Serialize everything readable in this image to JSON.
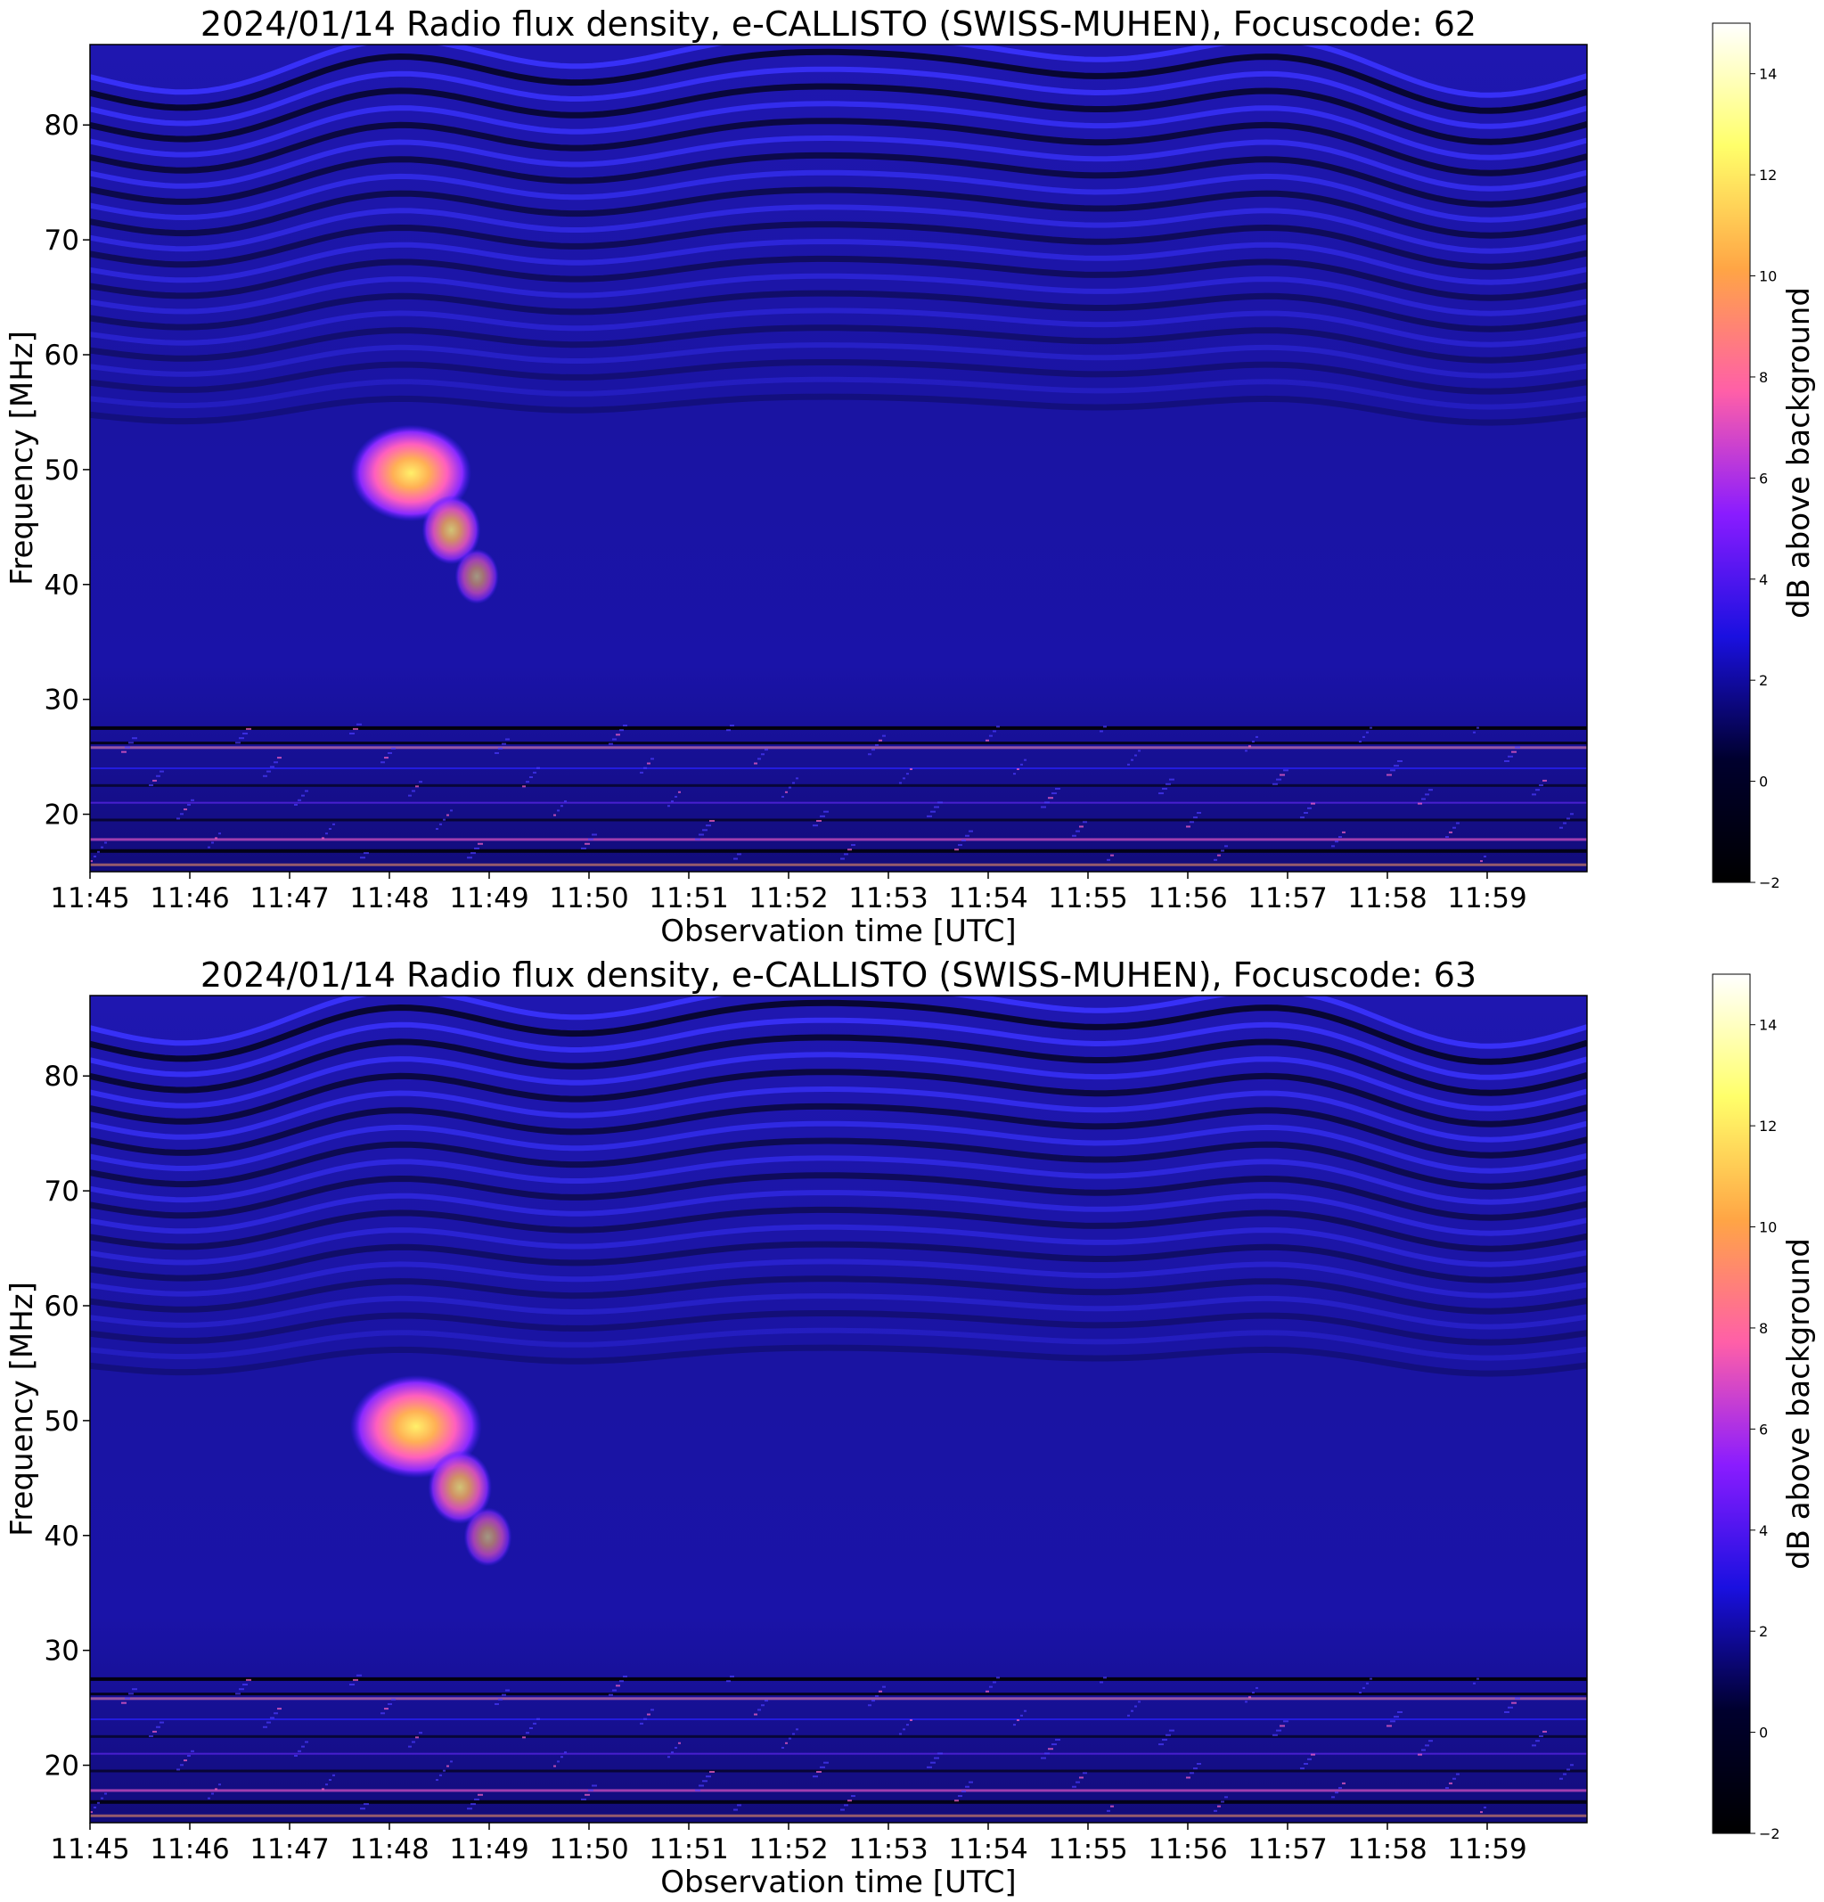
{
  "colors": {
    "colormap": [
      "#000000",
      "#00002e",
      "#1a10e0",
      "#8a1cff",
      "#ff5fa8",
      "#ffa545",
      "#ffff6a",
      "#ffffff"
    ],
    "background_band": "#1c13a6"
  },
  "chart_data": [
    {
      "type": "heatmap",
      "title": "2024/01/14  Radio flux density, e-CALLISTO (SWISS-MUHEN), Focuscode: 62",
      "xlabel": "Observation time [UTC]",
      "ylabel": "Frequency [MHz]",
      "colorbar_label": "dB above background",
      "x_ticks": [
        "11:45",
        "11:46",
        "11:47",
        "11:48",
        "11:49",
        "11:50",
        "11:51",
        "11:52",
        "11:53",
        "11:54",
        "11:55",
        "11:56",
        "11:57",
        "11:58",
        "11:59"
      ],
      "x_range": [
        "11:45",
        "12:00"
      ],
      "y_ticks": [
        20,
        30,
        40,
        50,
        60,
        70,
        80
      ],
      "ylim": [
        15,
        87
      ],
      "colorbar_ticks": [
        -2,
        0,
        2,
        4,
        6,
        8,
        10,
        12,
        14
      ],
      "colorbar_range": [
        -2,
        15
      ],
      "burst": {
        "start_time": "11:47:40",
        "end_time": "11:49:30",
        "freq_high_mhz": 53,
        "freq_low_mhz": 38,
        "peak_db": 13
      }
    },
    {
      "type": "heatmap",
      "title": "2024/01/14  Radio flux density, e-CALLISTO (SWISS-MUHEN), Focuscode: 63",
      "xlabel": "Observation time [UTC]",
      "ylabel": "Frequency [MHz]",
      "colorbar_label": "dB above background",
      "x_ticks": [
        "11:45",
        "11:46",
        "11:47",
        "11:48",
        "11:49",
        "11:50",
        "11:51",
        "11:52",
        "11:53",
        "11:54",
        "11:55",
        "11:56",
        "11:57",
        "11:58",
        "11:59"
      ],
      "x_range": [
        "11:45",
        "12:00"
      ],
      "y_ticks": [
        20,
        30,
        40,
        50,
        60,
        70,
        80
      ],
      "ylim": [
        15,
        87
      ],
      "colorbar_ticks": [
        -2,
        0,
        2,
        4,
        6,
        8,
        10,
        12,
        14
      ],
      "colorbar_range": [
        -2,
        15
      ],
      "burst": {
        "start_time": "11:47:40",
        "end_time": "11:49:40",
        "freq_high_mhz": 53,
        "freq_low_mhz": 37,
        "peak_db": 13
      }
    }
  ]
}
